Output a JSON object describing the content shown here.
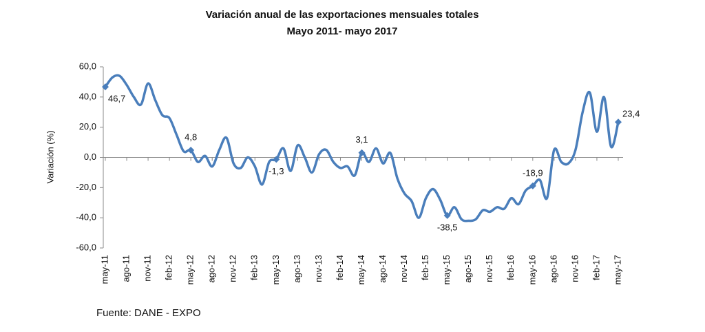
{
  "chart_data": {
    "type": "line",
    "title": "Variación anual de las exportaciones mensuales totales",
    "subtitle": "Mayo 2011- mayo 2017",
    "y_label": "Variación (%)",
    "source": "Fuente: DANE - EXPO",
    "categories": [
      "may-11",
      null,
      null,
      "ago-11",
      null,
      null,
      "nov-11",
      null,
      null,
      "feb-12",
      null,
      null,
      "may-12",
      null,
      null,
      "ago-12",
      null,
      null,
      "nov-12",
      null,
      null,
      "feb-13",
      null,
      null,
      "may-13",
      null,
      null,
      "ago-13",
      null,
      null,
      "nov-13",
      null,
      null,
      "feb-14",
      null,
      null,
      "may-14",
      null,
      null,
      "ago-14",
      null,
      null,
      "nov-14",
      null,
      null,
      "feb-15",
      null,
      null,
      "may-15",
      null,
      null,
      "ago-15",
      null,
      null,
      "nov-15",
      null,
      null,
      "feb-16",
      null,
      null,
      "may-16",
      null,
      null,
      "ago-16",
      null,
      null,
      "nov-16",
      null,
      null,
      "feb-17",
      null,
      null,
      "may-17"
    ],
    "series": [
      {
        "name": "Variación",
        "color": "#4a7ebb",
        "values": [
          46.7,
          53,
          54,
          48,
          40,
          35,
          49,
          38,
          28,
          26,
          15,
          4,
          4.8,
          -3,
          1,
          -6,
          5,
          13,
          -4,
          -7,
          0,
          -6,
          -18,
          -3,
          -1.3,
          6,
          -9,
          8,
          0,
          -10,
          2,
          5,
          -3,
          -7,
          -6,
          -12,
          3.1,
          -3,
          6,
          -4,
          3,
          -14,
          -24,
          -29,
          -40,
          -27,
          -21,
          -28,
          -38.5,
          -33,
          -41,
          -42,
          -41,
          -35,
          -36,
          -33,
          -34,
          -27,
          -31,
          -22,
          -18.9,
          -15,
          -27,
          5,
          -3,
          -4,
          5,
          30,
          43,
          17,
          40,
          7,
          23.4
        ],
        "value_labels": [
          "46,7",
          null,
          null,
          null,
          null,
          null,
          null,
          null,
          null,
          null,
          null,
          null,
          "4,8",
          null,
          null,
          null,
          null,
          null,
          null,
          null,
          null,
          null,
          null,
          null,
          "-1,3",
          null,
          null,
          null,
          null,
          null,
          null,
          null,
          null,
          null,
          null,
          null,
          "3,1",
          null,
          null,
          null,
          null,
          null,
          null,
          null,
          null,
          null,
          null,
          null,
          "-38,5",
          null,
          null,
          null,
          null,
          null,
          null,
          null,
          null,
          null,
          null,
          null,
          "-18,9",
          null,
          null,
          null,
          null,
          null,
          null,
          null,
          null,
          null,
          null,
          null,
          "23,4"
        ]
      }
    ],
    "ylim": [
      -60,
      60
    ],
    "yticks": [
      {
        "value": -60,
        "label": "-60,0"
      },
      {
        "value": -40,
        "label": "-40,0"
      },
      {
        "value": -20,
        "label": "-20,0"
      },
      {
        "value": 0,
        "label": "0,0"
      },
      {
        "value": 20,
        "label": "20,0"
      },
      {
        "value": 40,
        "label": "40,0"
      },
      {
        "value": 60,
        "label": "60,0"
      }
    ],
    "grid": false
  }
}
